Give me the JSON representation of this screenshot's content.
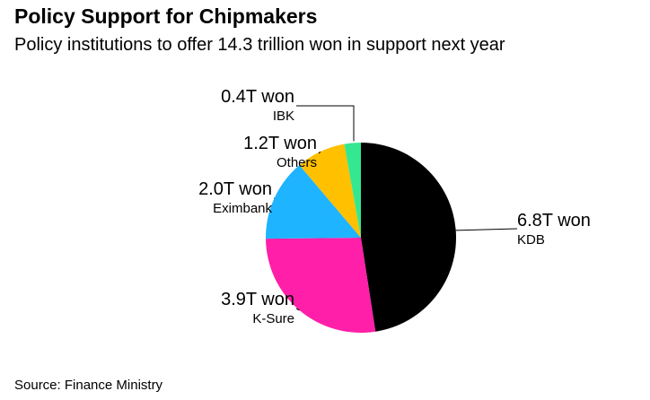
{
  "header": {
    "title": "Policy Support for Chipmakers",
    "subtitle": "Policy institutions to offer 14.3 trillion won in support next year"
  },
  "footer": {
    "source": "Source: Finance Ministry"
  },
  "chart_data": {
    "type": "pie",
    "title": "Policy Support for Chipmakers",
    "subtitle": "Policy institutions to offer 14.3 trillion won in support next year",
    "unit": "T won",
    "slices": [
      {
        "label": "KDB",
        "value": 6.8,
        "value_label": "6.8T won",
        "color": "#000000"
      },
      {
        "label": "K-Sure",
        "value": 3.9,
        "value_label": "3.9T won",
        "color": "#ff1fa8"
      },
      {
        "label": "Eximbank",
        "value": 2.0,
        "value_label": "2.0T won",
        "color": "#1eb4ff"
      },
      {
        "label": "Others",
        "value": 1.2,
        "value_label": "1.2T won",
        "color": "#ffc000"
      },
      {
        "label": "IBK",
        "value": 0.4,
        "value_label": "0.4T won",
        "color": "#33e890"
      }
    ],
    "legend": "none"
  }
}
